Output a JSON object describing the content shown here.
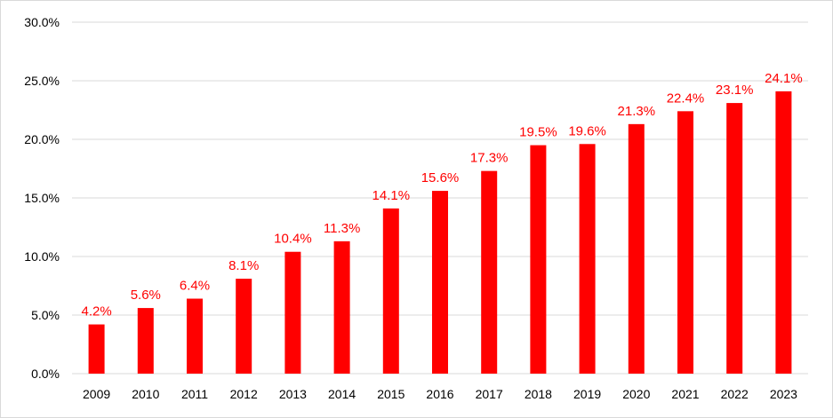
{
  "chart_data": {
    "type": "bar",
    "title": "",
    "xlabel": "",
    "ylabel": "",
    "categories": [
      "2009",
      "2010",
      "2011",
      "2012",
      "2013",
      "2014",
      "2015",
      "2016",
      "2017",
      "2018",
      "2019",
      "2020",
      "2021",
      "2022",
      "2023"
    ],
    "values": [
      4.2,
      5.6,
      6.4,
      8.1,
      10.4,
      11.3,
      14.1,
      15.6,
      17.3,
      19.5,
      19.6,
      21.3,
      22.4,
      23.1,
      24.1
    ],
    "value_labels": [
      "4.2%",
      "5.6%",
      "6.4%",
      "8.1%",
      "10.4%",
      "11.3%",
      "14.1%",
      "15.6%",
      "17.3%",
      "19.5%",
      "19.6%",
      "21.3%",
      "22.4%",
      "23.1%",
      "24.1%"
    ],
    "ylim": [
      0,
      30
    ],
    "yticks": [
      0,
      5,
      10,
      15,
      20,
      25,
      30
    ],
    "ytick_labels": [
      "0.0%",
      "5.0%",
      "10.0%",
      "15.0%",
      "20.0%",
      "25.0%",
      "30.0%"
    ],
    "grid": true,
    "legend": "none",
    "colors": {
      "bar": "#ff0000",
      "data_label": "#ff0000",
      "grid": "#d9d9d9",
      "axis": "#d9d9d9",
      "tick_text": "#000000"
    }
  }
}
